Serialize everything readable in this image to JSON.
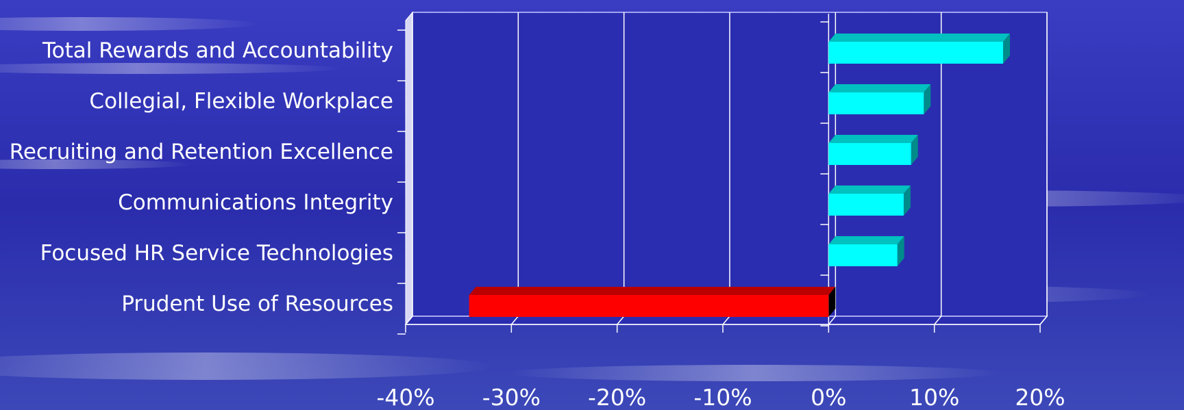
{
  "chart_data": {
    "type": "bar",
    "orientation": "horizontal",
    "style": "3d",
    "categories": [
      "Total Rewards and Accountability",
      "Collegial, Flexible Workplace",
      "Recruiting and Retention Excellence",
      "Communications Integrity",
      "Focused HR Service Technologies",
      "Prudent Use of Resources"
    ],
    "values": [
      16.5,
      9,
      7.8,
      7.1,
      6.5,
      -34
    ],
    "xlim": [
      -40,
      20
    ],
    "ticks": [
      -40,
      -30,
      -20,
      -10,
      0,
      10,
      20
    ],
    "tick_labels": [
      "-40%",
      "-30%",
      "-20%",
      "-10%",
      "0%",
      "10%",
      "20%"
    ],
    "grid": true,
    "legend": "none",
    "title": "",
    "xlabel": "",
    "ylabel": "",
    "colors": {
      "positive_front": "#00ffff",
      "positive_top": "#00c0c0",
      "positive_side": "#008b8b",
      "negative_front": "#ff0000",
      "negative_top": "#bb0000",
      "negative_side": "#000000",
      "grid": "#ffffff",
      "plot_bg": "#2a2db0",
      "text": "#ffffff"
    }
  }
}
